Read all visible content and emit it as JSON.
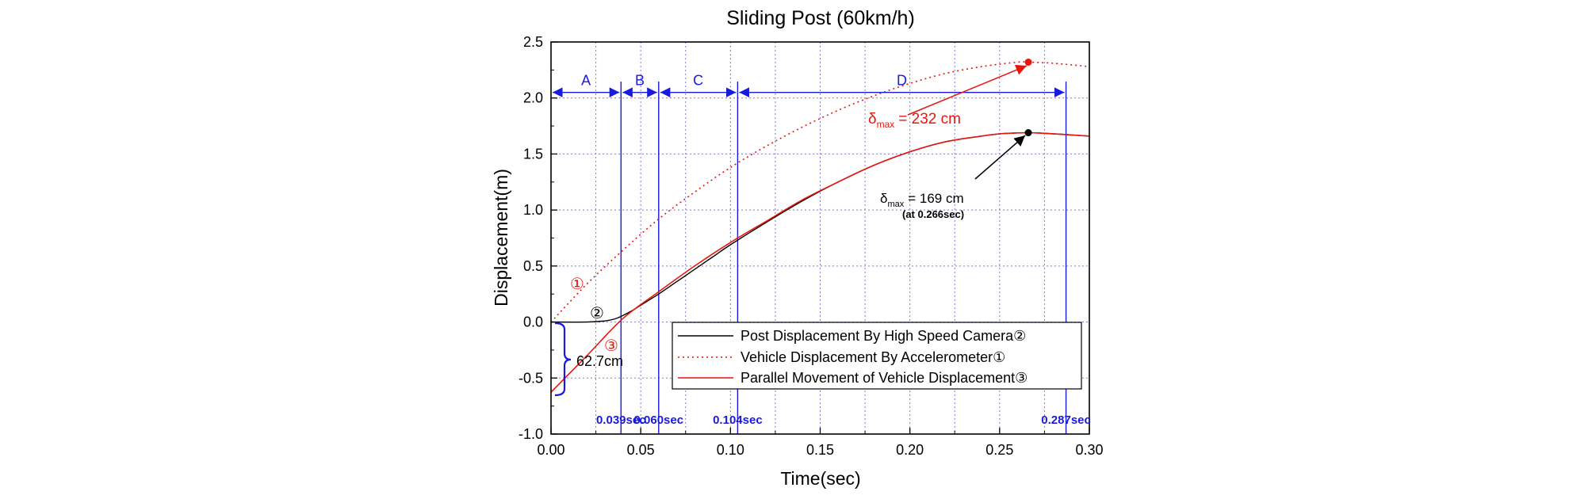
{
  "chart_data": {
    "type": "line",
    "title": "Sliding Post (60km/h)",
    "xlabel": "Time(sec)",
    "ylabel": "Displacement(m)",
    "xlim": [
      0,
      0.3
    ],
    "ylim": [
      -1.0,
      2.5
    ],
    "x_ticks": [
      "0.00",
      "0.05",
      "0.10",
      "0.15",
      "0.20",
      "0.25",
      "0.30"
    ],
    "y_ticks": [
      "-1.0",
      "-0.5",
      "0.0",
      "0.5",
      "1.0",
      "1.5",
      "2.0",
      "2.5"
    ],
    "grid": true,
    "legend_position": "bottom-right",
    "series": [
      {
        "name": "Post Displacement By High Speed Camera②",
        "color": "#000000",
        "style": "solid",
        "x": [
          0.0,
          0.02,
          0.03,
          0.035,
          0.039,
          0.045,
          0.05,
          0.06,
          0.07,
          0.08,
          0.09,
          0.1,
          0.12,
          0.14,
          0.16,
          0.18,
          0.2,
          0.22,
          0.24,
          0.25,
          0.266,
          0.28,
          0.29,
          0.3
        ],
        "y": [
          0.0,
          0.0,
          0.01,
          0.025,
          0.05,
          0.1,
          0.15,
          0.25,
          0.36,
          0.47,
          0.58,
          0.69,
          0.89,
          1.08,
          1.25,
          1.4,
          1.52,
          1.61,
          1.66,
          1.68,
          1.69,
          1.68,
          1.67,
          1.66
        ]
      },
      {
        "name": "Vehicle Displacement By Accelerometer①",
        "color": "#e8140e",
        "style": "dotted",
        "x": [
          0.0,
          0.02,
          0.04,
          0.06,
          0.08,
          0.1,
          0.12,
          0.14,
          0.16,
          0.18,
          0.2,
          0.22,
          0.24,
          0.26,
          0.266,
          0.28,
          0.3
        ],
        "y": [
          0.0,
          0.34,
          0.64,
          0.92,
          1.16,
          1.38,
          1.57,
          1.74,
          1.89,
          2.02,
          2.13,
          2.22,
          2.28,
          2.32,
          2.32,
          2.31,
          2.28
        ]
      },
      {
        "name": "Parallel Movement of Vehicle Displacement③",
        "color": "#e8140e",
        "style": "solid",
        "x": [
          0.0,
          0.02,
          0.04,
          0.06,
          0.08,
          0.1,
          0.12,
          0.14,
          0.16,
          0.18,
          0.2,
          0.22,
          0.24,
          0.25,
          0.266,
          0.28,
          0.3
        ],
        "y": [
          -0.627,
          -0.3,
          0.03,
          0.27,
          0.5,
          0.71,
          0.9,
          1.09,
          1.25,
          1.4,
          1.52,
          1.61,
          1.66,
          1.68,
          1.69,
          1.68,
          1.66
        ]
      }
    ],
    "markers": [
      {
        "name": "peak-vehicle",
        "x": 0.266,
        "y": 2.32,
        "color": "#e8140e"
      },
      {
        "name": "peak-post",
        "x": 0.266,
        "y": 1.69,
        "color": "#000000"
      }
    ],
    "phase_boundaries": {
      "x": [
        0.039,
        0.06,
        0.104,
        0.287
      ],
      "labels": [
        "0.039sec",
        "0.060sec",
        "0.104sec",
        "0.287sec"
      ]
    },
    "phases": [
      {
        "label": "A",
        "from": 0.0,
        "to": 0.039
      },
      {
        "label": "B",
        "from": 0.039,
        "to": 0.06
      },
      {
        "label": "C",
        "from": 0.06,
        "to": 0.104
      },
      {
        "label": "D",
        "from": 0.104,
        "to": 0.287
      }
    ],
    "annotations": {
      "delta_symbol": "δ",
      "max_subscript": "max",
      "vehicle_max": "= 232 cm",
      "post_max": "= 169 cm",
      "post_max_time": "(at 0.266sec)",
      "offset_label": "62.7cm",
      "curve_label_1": "①",
      "curve_label_2": "②",
      "curve_label_3": "③"
    },
    "colors": {
      "blue": "#1a1adc",
      "red": "#e8140e",
      "grid": "#7a7ad8"
    }
  }
}
